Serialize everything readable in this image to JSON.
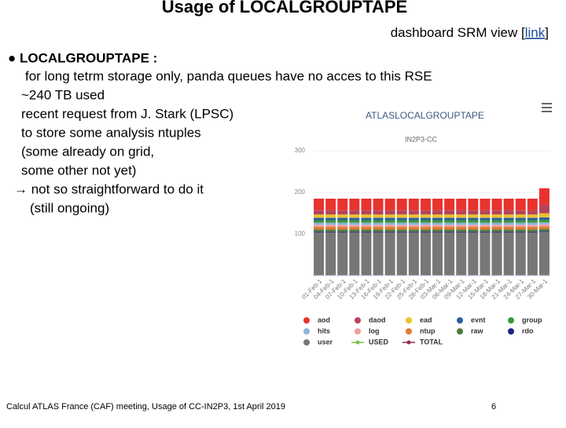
{
  "title": "Usage of LOCALGROUPTAPE",
  "link_line": {
    "before": "dashboard SRM view [",
    "link": "link",
    "after": "]"
  },
  "bullet": {
    "heading": "● LOCALGROUPTAPE :",
    "lines": [
      " for long tetrm storage only, panda queues have no acces to this RSE",
      "~240 TB used",
      "recent request from J. Stark (LPSC)",
      "to store some analysis ntuples",
      "(some already on grid,",
      "some other not yet)",
      "→ not so straightforward to do it",
      "(still ongoing)"
    ]
  },
  "footer": {
    "left": "Calcul ATLAS France (CAF) meeting, Usage of CC-IN2P3, 1st April 2019",
    "page": "6"
  },
  "chart_data": {
    "type": "stacked_bar",
    "title": "ATLASLOCALGROUPTAPE",
    "subtitle": "IN2P3-CC",
    "categories": [
      "01-Feb-1",
      "04-Feb-1",
      "07-Feb-1",
      "10-Feb-1",
      "13-Feb-1",
      "16-Feb-1",
      "19-Feb-1",
      "22-Feb-1",
      "25-Feb-1",
      "28-Feb-1",
      "03-Mar-1",
      "06-Mar-1",
      "09-Mar-1",
      "12-Mar-1",
      "15-Mar-1",
      "18-Mar-1",
      "21-Mar-1",
      "24-Mar-1",
      "27-Mar-1",
      "30-Mar-1"
    ],
    "ylim": [
      0,
      300
    ],
    "yticks": [
      100,
      200,
      300
    ],
    "grid": true,
    "series": [
      {
        "name": "aod",
        "color": "#e8332f",
        "values": [
          28,
          28,
          28,
          28,
          28,
          28,
          28,
          28,
          28,
          28,
          28,
          28,
          28,
          28,
          28,
          28,
          28,
          28,
          28,
          40
        ]
      },
      {
        "name": "daod",
        "color": "#b5445b",
        "values": [
          10,
          10,
          10,
          10,
          10,
          10,
          10,
          10,
          10,
          10,
          10,
          10,
          10,
          10,
          10,
          10,
          10,
          10,
          10,
          20
        ]
      },
      {
        "name": "ead",
        "color": "#e8c22a",
        "values": [
          8,
          8,
          8,
          8,
          8,
          8,
          8,
          8,
          8,
          8,
          8,
          8,
          8,
          8,
          8,
          8,
          8,
          8,
          8,
          10
        ]
      },
      {
        "name": "evnt",
        "color": "#2c5f9e",
        "values": [
          6,
          6,
          6,
          6,
          6,
          6,
          6,
          6,
          6,
          6,
          6,
          6,
          6,
          6,
          6,
          6,
          6,
          6,
          6,
          6
        ]
      },
      {
        "name": "group",
        "color": "#3c9a3c",
        "values": [
          6,
          6,
          6,
          6,
          6,
          6,
          6,
          6,
          6,
          6,
          6,
          6,
          6,
          6,
          6,
          6,
          6,
          6,
          6,
          6
        ]
      },
      {
        "name": "hits",
        "color": "#8fb3e0",
        "values": [
          5,
          5,
          5,
          5,
          5,
          5,
          5,
          5,
          5,
          5,
          5,
          5,
          5,
          5,
          5,
          5,
          5,
          5,
          5,
          5
        ]
      },
      {
        "name": "log",
        "color": "#f0a0a0",
        "values": [
          5,
          5,
          5,
          5,
          5,
          5,
          5,
          5,
          5,
          5,
          5,
          5,
          5,
          5,
          5,
          5,
          5,
          5,
          5,
          5
        ]
      },
      {
        "name": "ntup",
        "color": "#e07a2e",
        "values": [
          6,
          6,
          6,
          6,
          6,
          6,
          6,
          6,
          6,
          6,
          6,
          6,
          6,
          6,
          6,
          6,
          6,
          6,
          6,
          6
        ]
      },
      {
        "name": "raw",
        "color": "#4d7a3a",
        "values": [
          5,
          5,
          5,
          5,
          5,
          5,
          5,
          5,
          5,
          5,
          5,
          5,
          5,
          5,
          5,
          5,
          5,
          5,
          5,
          5
        ]
      },
      {
        "name": "rdo",
        "color": "#1a237e",
        "values": [
          2,
          2,
          2,
          2,
          2,
          2,
          2,
          2,
          2,
          2,
          2,
          2,
          2,
          2,
          2,
          2,
          2,
          2,
          2,
          2
        ]
      },
      {
        "name": "user",
        "color": "#777777",
        "values": [
          104,
          104,
          104,
          104,
          104,
          104,
          104,
          104,
          104,
          104,
          104,
          104,
          104,
          104,
          104,
          104,
          104,
          104,
          104,
          105
        ]
      }
    ],
    "line_legend": [
      {
        "name": "USED",
        "color": "#7ac143"
      },
      {
        "name": "TOTAL",
        "color": "#8e2a55"
      }
    ]
  }
}
